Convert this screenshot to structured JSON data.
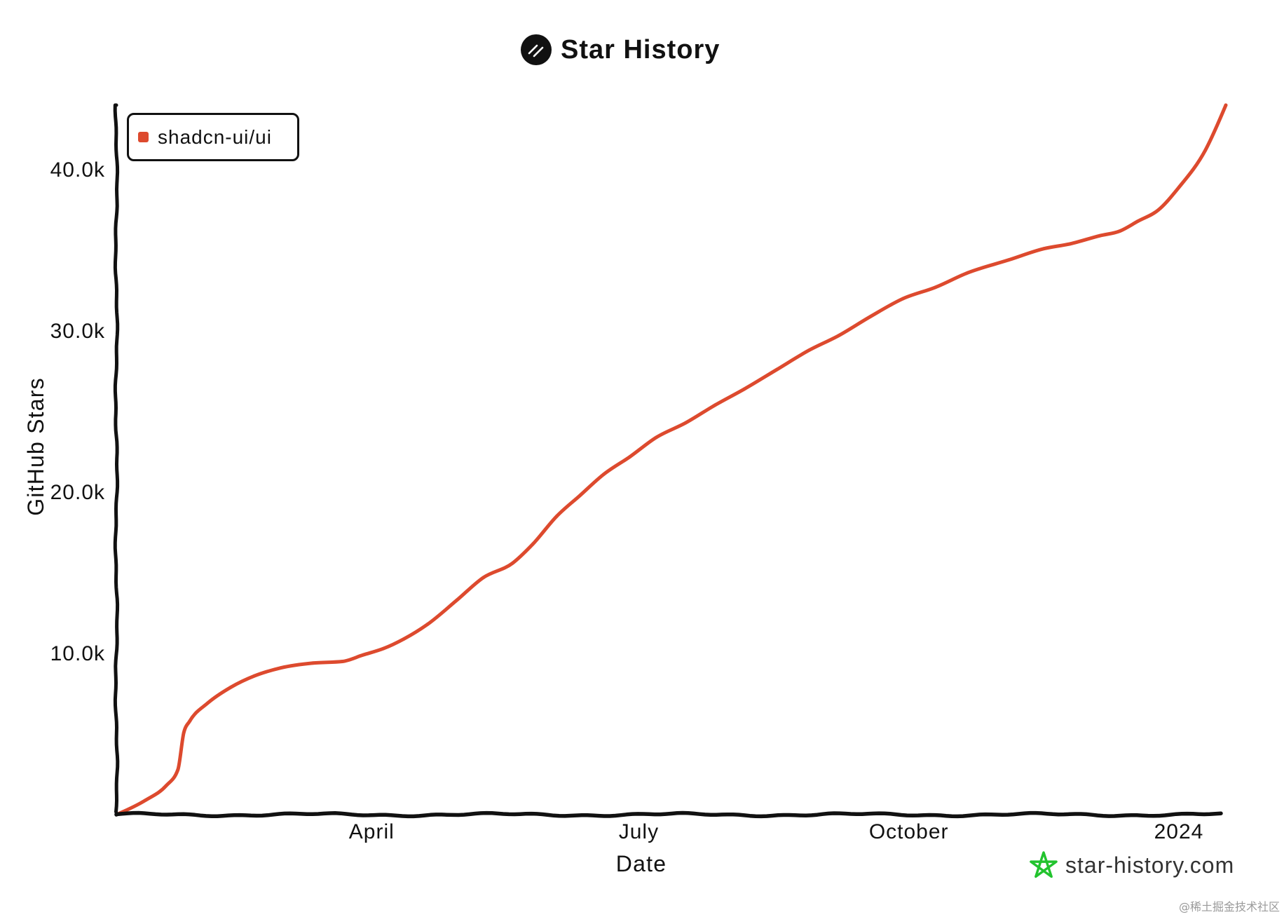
{
  "header": {
    "logo_icon": "shadcn-logo-icon"
  },
  "chart_data": {
    "type": "line",
    "title": "Star History",
    "xlabel": "Date",
    "ylabel": "GitHub Stars",
    "xlim": [
      "2023-01-04",
      "2024-01-17"
    ],
    "ylim": [
      0,
      44000
    ],
    "grid": false,
    "legend": "top-left",
    "x_ticks": [
      {
        "value": "2023-04-01",
        "label": "April"
      },
      {
        "value": "2023-07-01",
        "label": "July"
      },
      {
        "value": "2023-10-01",
        "label": "October"
      },
      {
        "value": "2024-01-01",
        "label": "2024"
      }
    ],
    "y_ticks": [
      {
        "value": 10000,
        "label": "10.0k"
      },
      {
        "value": 20000,
        "label": "20.0k"
      },
      {
        "value": 30000,
        "label": "30.0k"
      },
      {
        "value": 40000,
        "label": "40.0k"
      }
    ],
    "series": [
      {
        "name": "shadcn-ui/ui",
        "color": "#dd4a2e",
        "x": [
          "2023-01-04",
          "2023-01-14",
          "2023-01-21",
          "2023-01-25",
          "2023-01-27",
          "2023-01-29",
          "2023-02-04",
          "2023-02-12",
          "2023-02-20",
          "2023-03-01",
          "2023-03-12",
          "2023-03-22",
          "2023-03-29",
          "2023-04-05",
          "2023-04-12",
          "2023-04-20",
          "2023-04-30",
          "2023-05-09",
          "2023-05-19",
          "2023-05-26",
          "2023-06-03",
          "2023-06-11",
          "2023-06-19",
          "2023-06-28",
          "2023-07-07",
          "2023-07-17",
          "2023-07-27",
          "2023-08-06",
          "2023-08-17",
          "2023-08-28",
          "2023-09-07",
          "2023-09-18",
          "2023-09-29",
          "2023-10-10",
          "2023-10-21",
          "2023-11-04",
          "2023-11-16",
          "2023-11-25",
          "2023-12-05",
          "2023-12-12",
          "2023-12-18",
          "2023-12-25",
          "2024-01-01",
          "2024-01-10",
          "2024-01-17"
        ],
        "y": [
          0,
          900,
          1800,
          2800,
          5100,
          5800,
          6900,
          7900,
          8600,
          9100,
          9400,
          9500,
          9900,
          10300,
          10900,
          11800,
          13300,
          14700,
          15600,
          16800,
          18500,
          19800,
          21100,
          22200,
          23400,
          24300,
          25400,
          26400,
          27600,
          28800,
          29700,
          30900,
          32000,
          32700,
          33600,
          34400,
          35100,
          35400,
          35900,
          36200,
          36800,
          37500,
          38900,
          41200,
          44000
        ]
      }
    ]
  },
  "watermark": {
    "icon": "star-icon",
    "icon_color": "#22c32e",
    "text": "star-history.com"
  },
  "credit": "@稀土掘金技术社区"
}
